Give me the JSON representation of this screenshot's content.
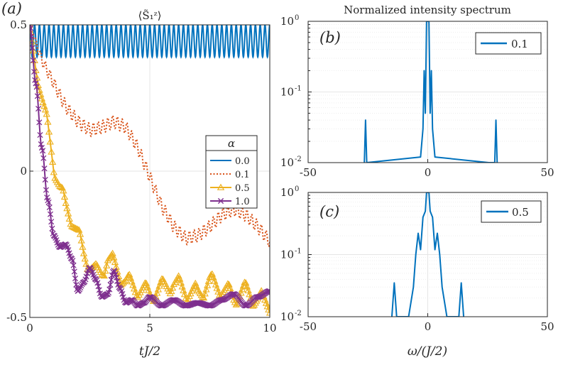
{
  "chart_data": [
    {
      "type": "line",
      "panel_label": "(a)",
      "title": "⟨S̃₁ᶻ⟩",
      "xlabel": "tJ/2",
      "ylabel": "",
      "xlim": [
        0,
        10
      ],
      "ylim": [
        -0.5,
        0.5
      ],
      "xticks": [
        "0",
        "5",
        "10"
      ],
      "yticks": [
        "-0.5",
        "0",
        "0.5"
      ],
      "grid": true,
      "legend": {
        "title": "α",
        "placement": "right"
      },
      "series": [
        {
          "name": "0.0",
          "color": "#0072BD",
          "style": "solid",
          "marker": "none",
          "desc": "fast oscillation between 0.5 and about 0.39 (about 50 periods over t=0..10)",
          "x": [
            0,
            10
          ],
          "y_upper": [
            0.5,
            0.5
          ],
          "y_lower": [
            0.39,
            0.39
          ]
        },
        {
          "name": "0.1",
          "color": "#D95319",
          "style": "dotted",
          "marker": "none",
          "x": [
            0,
            0.5,
            1,
            1.5,
            2,
            2.5,
            3,
            3.5,
            4,
            4.5,
            5,
            5.5,
            6,
            6.5,
            7,
            7.5,
            8,
            8.5,
            9,
            9.5,
            10
          ],
          "y": [
            0.5,
            0.38,
            0.3,
            0.22,
            0.17,
            0.14,
            0.15,
            0.17,
            0.15,
            0.08,
            -0.02,
            -0.12,
            -0.19,
            -0.23,
            -0.22,
            -0.19,
            -0.15,
            -0.13,
            -0.15,
            -0.19,
            -0.24
          ]
        },
        {
          "name": "0.5",
          "color": "#EDB120",
          "style": "solid",
          "marker": "triangle",
          "x": [
            0,
            0.25,
            0.5,
            0.75,
            1,
            1.25,
            1.5,
            1.75,
            2,
            2.25,
            2.5,
            2.75,
            3,
            3.25,
            3.5,
            3.75,
            4,
            4.5,
            5,
            5.5,
            6,
            6.5,
            7,
            7.5,
            8,
            8.5,
            9,
            9.5,
            10
          ],
          "y": [
            0.5,
            0.35,
            0.25,
            0.15,
            0.02,
            -0.06,
            -0.12,
            -0.16,
            -0.22,
            -0.28,
            -0.32,
            -0.35,
            -0.34,
            -0.3,
            -0.32,
            -0.35,
            -0.38,
            -0.4,
            -0.42,
            -0.4,
            -0.38,
            -0.41,
            -0.42,
            -0.38,
            -0.4,
            -0.43,
            -0.41,
            -0.44,
            -0.45
          ]
        },
        {
          "name": "1.0",
          "color": "#7E2F8E",
          "style": "solid",
          "marker": "x",
          "x": [
            0,
            0.25,
            0.5,
            0.75,
            1,
            1.25,
            1.5,
            1.75,
            2,
            2.25,
            2.5,
            2.75,
            3,
            3.25,
            3.5,
            3.75,
            4,
            4.25,
            4.5,
            4.75,
            5,
            5.5,
            6,
            6.5,
            7,
            7.5,
            8,
            8.5,
            9,
            9.5,
            10
          ],
          "y": [
            0.5,
            0.3,
            0.08,
            -0.1,
            -0.22,
            -0.26,
            -0.25,
            -0.3,
            -0.41,
            -0.38,
            -0.33,
            -0.37,
            -0.43,
            -0.42,
            -0.34,
            -0.4,
            -0.45,
            -0.44,
            -0.46,
            -0.45,
            -0.43,
            -0.46,
            -0.44,
            -0.46,
            -0.45,
            -0.46,
            -0.44,
            -0.42,
            -0.46,
            -0.43,
            -0.41
          ]
        }
      ]
    },
    {
      "type": "line",
      "panel_label": "(b)",
      "title": "Normalized intensity spectrum",
      "xlabel": "",
      "yscale": "log",
      "xlim": [
        -50,
        50
      ],
      "ylim": [
        0.01,
        1
      ],
      "xticks": [
        "-50",
        "0",
        "50"
      ],
      "ytick_labels": [
        "10",
        "10",
        "10"
      ],
      "ytick_exponents": [
        "-2",
        "-1",
        "0"
      ],
      "grid": true,
      "legend": {
        "placement": "top-right"
      },
      "series": [
        {
          "name": "0.1",
          "color": "#0072BD",
          "x": [
            -26.5,
            -26,
            -25.5,
            -3,
            -2,
            -1.5,
            -1,
            -0.5,
            0,
            0.5,
            1,
            1.5,
            2,
            3,
            25.5,
            26,
            26.5,
            28,
            28.5,
            29
          ],
          "y": [
            0.01,
            0.04,
            0.01,
            0.012,
            0.03,
            0.2,
            0.05,
            1,
            1,
            1,
            0.05,
            0.2,
            0.03,
            0.012,
            0.01,
            0.01,
            0.01,
            0.01,
            0.04,
            0.01
          ]
        }
      ]
    },
    {
      "type": "line",
      "panel_label": "(c)",
      "title": "",
      "xlabel": "ω/(J/2)",
      "yscale": "log",
      "xlim": [
        -50,
        50
      ],
      "ylim": [
        0.01,
        1
      ],
      "xticks": [
        "-50",
        "0",
        "50"
      ],
      "ytick_labels": [
        "10",
        "10",
        "10"
      ],
      "ytick_exponents": [
        "-2",
        "-1",
        "0"
      ],
      "grid": true,
      "legend": {
        "placement": "top-right"
      },
      "series": [
        {
          "name": "0.5",
          "color": "#0072BD",
          "x": [
            -15,
            -14,
            -13,
            -8,
            -6,
            -5,
            -4,
            -3,
            -2,
            -1,
            -0.5,
            0,
            0.5,
            1,
            2,
            3,
            4,
            5,
            6,
            8,
            13,
            14,
            15
          ],
          "y": [
            0.01,
            0.035,
            0.01,
            0.01,
            0.03,
            0.1,
            0.22,
            0.12,
            0.4,
            0.5,
            1,
            1,
            1,
            0.5,
            0.4,
            0.12,
            0.22,
            0.1,
            0.03,
            0.01,
            0.01,
            0.035,
            0.01
          ]
        }
      ]
    }
  ]
}
